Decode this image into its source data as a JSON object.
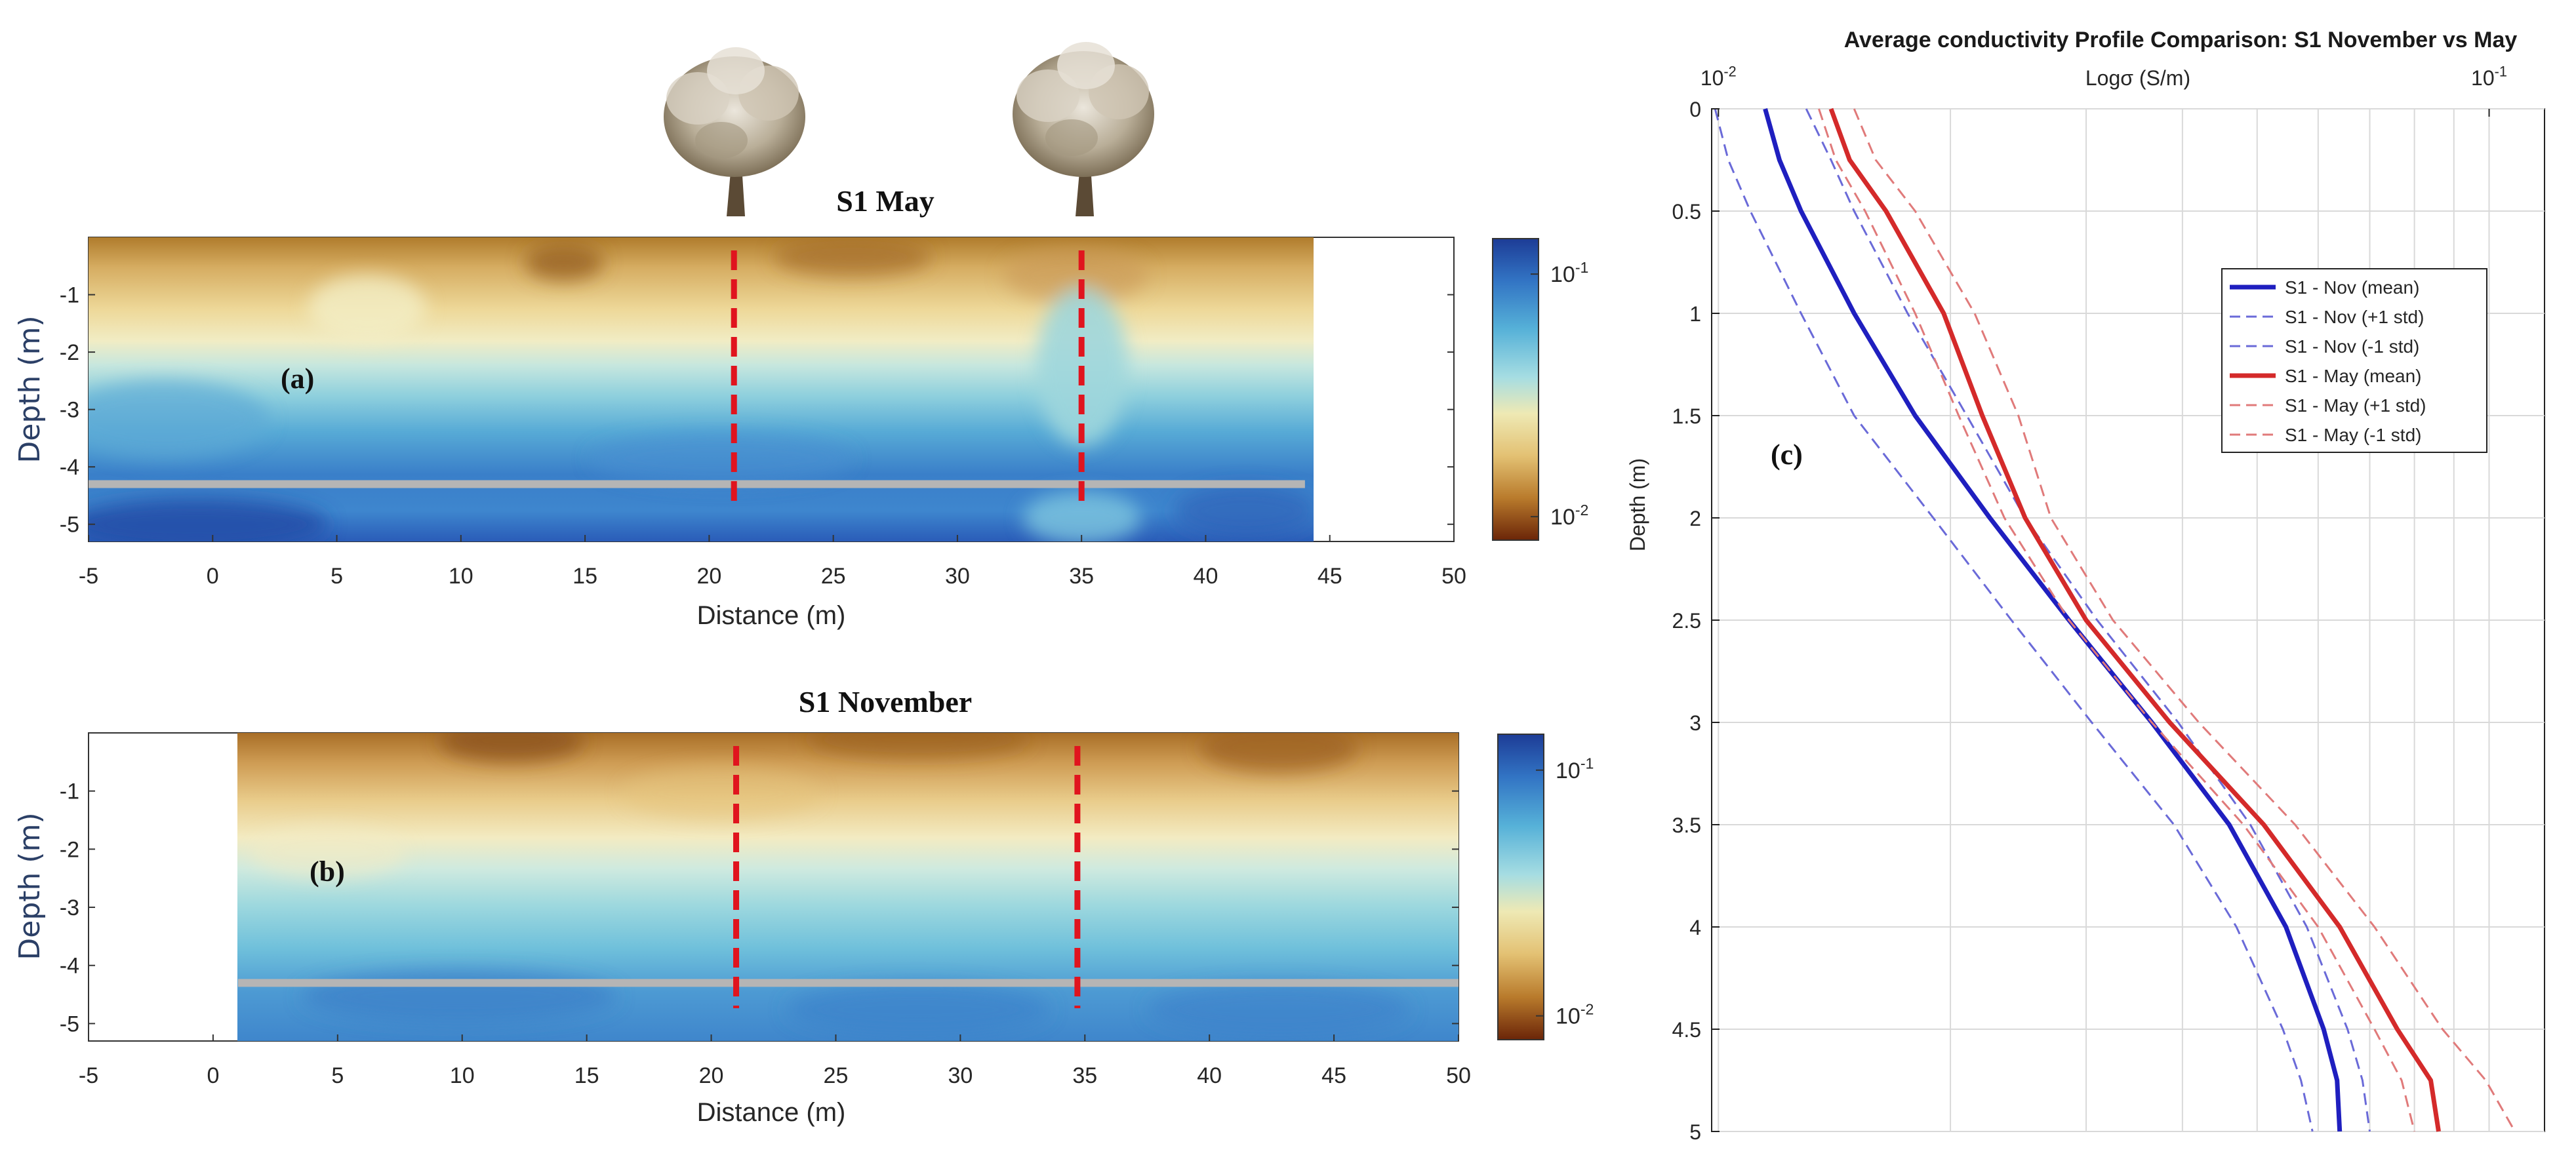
{
  "chart_data": [
    {
      "type": "heatmap",
      "panel": "(a)",
      "title": "S1 May",
      "xlabel": "Distance (m)",
      "ylabel": "Depth (m)",
      "xlim": [
        -5,
        50
      ],
      "ylim": [
        -5.3,
        0
      ],
      "data_extent_x": [
        -5,
        44
      ],
      "x_ticks": [
        "-5",
        "0",
        "5",
        "10",
        "15",
        "20",
        "25",
        "30",
        "35",
        "40",
        "45",
        "50"
      ],
      "y_ticks": [
        "-1",
        "-2",
        "-3",
        "-4",
        "-5"
      ],
      "y_tick_values": [
        -1,
        -2,
        -3,
        -4,
        -5
      ],
      "colorbar": {
        "scale": "log",
        "ticks": [
          "10-1",
          "10-2"
        ],
        "tick_values": [
          0.1,
          0.01
        ]
      },
      "tree_positions": [
        21,
        35
      ],
      "marker_lines_x": [
        21,
        35
      ],
      "reference_depth": -4.3
    },
    {
      "type": "heatmap",
      "panel": "(b)",
      "title": "S1 November",
      "xlabel": "Distance (m)",
      "ylabel": "Depth (m)",
      "xlim": [
        -5,
        50
      ],
      "ylim": [
        -5.3,
        0
      ],
      "data_extent_x": [
        1,
        50
      ],
      "x_ticks": [
        "-5",
        "0",
        "5",
        "10",
        "15",
        "20",
        "25",
        "30",
        "35",
        "40",
        "45",
        "50"
      ],
      "y_ticks": [
        "-1",
        "-2",
        "-3",
        "-4",
        "-5"
      ],
      "y_tick_values": [
        -1,
        -2,
        -3,
        -4,
        -5
      ],
      "colorbar": {
        "scale": "log",
        "ticks": [
          "10-1",
          "10-2"
        ],
        "tick_values": [
          0.1,
          0.01
        ]
      },
      "marker_lines_x": [
        21,
        34.7
      ],
      "reference_depth": -4.3
    },
    {
      "type": "line",
      "panel": "(c)",
      "title": "Average conductivity Profile Comparison: S1 November vs May",
      "xlabel": "Logσ (S/m)",
      "ylabel": "Depth (m)",
      "x_scale": "log",
      "xlim": [
        0.0098,
        0.118
      ],
      "ylim": [
        0,
        5
      ],
      "x_ticks": [
        "10-2",
        "10-1"
      ],
      "y_ticks": [
        "0",
        "0.5",
        "1",
        "1.5",
        "2",
        "2.5",
        "3",
        "3.5",
        "4",
        "4.5",
        "5"
      ],
      "y_tick_values": [
        0,
        0.5,
        1,
        1.5,
        2,
        2.5,
        3,
        3.5,
        4,
        4.5,
        5
      ],
      "grid": true,
      "legend_position": "right",
      "depth": [
        0,
        0.25,
        0.5,
        1,
        1.5,
        2,
        2.5,
        3,
        3.5,
        4,
        4.5,
        4.75,
        5
      ],
      "series": [
        {
          "name": "S1 - Nov (mean)",
          "color": "#1f1fbf",
          "style": "solid",
          "values": [
            0.0115,
            0.012,
            0.0128,
            0.015,
            0.018,
            0.0225,
            0.0285,
            0.0365,
            0.046,
            0.0545,
            0.061,
            0.0635,
            0.064
          ]
        },
        {
          "name": "S1 - Nov (+1 std)",
          "color": "#6a6ad8",
          "style": "dashed",
          "values": [
            0.013,
            0.014,
            0.015,
            0.0176,
            0.021,
            0.025,
            0.031,
            0.0395,
            0.049,
            0.058,
            0.0655,
            0.0685,
            0.07
          ]
        },
        {
          "name": "S1 - Nov (-1 std)",
          "color": "#6a6ad8",
          "style": "dashed",
          "values": [
            0.0099,
            0.0103,
            0.011,
            0.0128,
            0.015,
            0.019,
            0.024,
            0.0305,
            0.039,
            0.047,
            0.054,
            0.057,
            0.059
          ]
        },
        {
          "name": "S1 - May (mean)",
          "color": "#d42a2a",
          "style": "solid",
          "values": [
            0.014,
            0.0148,
            0.0165,
            0.0196,
            0.022,
            0.025,
            0.03,
            0.0385,
            0.051,
            0.064,
            0.076,
            0.084,
            0.086
          ]
        },
        {
          "name": "S1 - May (+1 std)",
          "color": "#e07a7a",
          "style": "dashed",
          "values": [
            0.015,
            0.016,
            0.018,
            0.0215,
            0.0245,
            0.027,
            0.0325,
            0.042,
            0.056,
            0.071,
            0.087,
            0.099,
            0.108
          ]
        },
        {
          "name": "S1 - May (-1 std)",
          "color": "#e07a7a",
          "style": "dashed",
          "values": [
            0.0135,
            0.0142,
            0.0155,
            0.018,
            0.0205,
            0.0235,
            0.0285,
            0.0365,
            0.048,
            0.06,
            0.071,
            0.077,
            0.08
          ]
        }
      ]
    }
  ]
}
